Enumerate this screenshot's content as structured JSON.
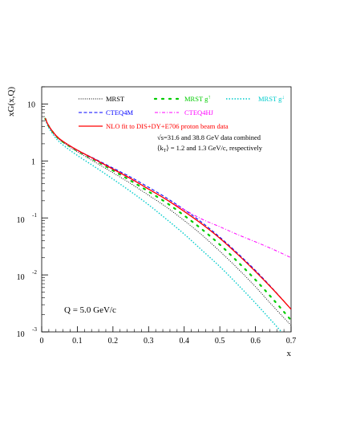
{
  "chart_data": {
    "type": "line",
    "xlabel": "x",
    "ylabel": "xG(x,Q)",
    "xlim": [
      0,
      0.7
    ],
    "ylim": [
      0.001,
      20
    ],
    "yscale": "log",
    "grid": false,
    "legend_position": "top",
    "x_ticks": [
      {
        "value": 0,
        "label": "0"
      },
      {
        "value": 0.1,
        "label": "0.1"
      },
      {
        "value": 0.2,
        "label": "0.2"
      },
      {
        "value": 0.3,
        "label": "0.3"
      },
      {
        "value": 0.4,
        "label": "0.4"
      },
      {
        "value": 0.5,
        "label": "0.5"
      },
      {
        "value": 0.6,
        "label": "0.6"
      },
      {
        "value": 0.7,
        "label": "0.7"
      }
    ],
    "y_ticks": [
      {
        "value": 10,
        "base": "10",
        "exp": ""
      },
      {
        "value": 1,
        "base": "1",
        "exp": ""
      },
      {
        "value": 0.1,
        "base": "10",
        "exp": "-1"
      },
      {
        "value": 0.01,
        "base": "10",
        "exp": "-2"
      },
      {
        "value": 0.001,
        "base": "10",
        "exp": "-3"
      }
    ],
    "annotations": [
      {
        "text": "√s=31.6 and 38.8 GeV data combined"
      },
      {
        "text": "⟨k_T⟩ = 1.2 and 1.3 GeV/c, respectively"
      },
      {
        "text": "Q = 5.0 GeV/c"
      }
    ],
    "series": [
      {
        "name": "MRST",
        "color": "#000000",
        "dash": "1,1.6",
        "width": 0.9,
        "x": [
          0.01,
          0.02,
          0.04,
          0.06,
          0.1,
          0.15,
          0.2,
          0.25,
          0.3,
          0.35,
          0.4,
          0.45,
          0.5,
          0.55,
          0.6,
          0.65,
          0.7
        ],
        "y": [
          5.5,
          4.0,
          2.7,
          2.1,
          1.45,
          0.95,
          0.62,
          0.4,
          0.25,
          0.155,
          0.09,
          0.05,
          0.026,
          0.013,
          0.0062,
          0.0028,
          0.0013
        ]
      },
      {
        "name": "MRST g↑",
        "color": "#00cc00",
        "dash": "2,7",
        "width": 2.2,
        "x": [
          0.01,
          0.02,
          0.04,
          0.06,
          0.1,
          0.15,
          0.2,
          0.25,
          0.3,
          0.35,
          0.4,
          0.45,
          0.5,
          0.55,
          0.6,
          0.65,
          0.7
        ],
        "y": [
          5.5,
          4.05,
          2.75,
          2.15,
          1.5,
          1.02,
          0.68,
          0.45,
          0.29,
          0.185,
          0.11,
          0.063,
          0.034,
          0.017,
          0.0082,
          0.0037,
          0.0016
        ]
      },
      {
        "name": "MRST g↓",
        "color": "#00cccc",
        "dash": "1.5,2",
        "width": 1.4,
        "x": [
          0.01,
          0.02,
          0.04,
          0.06,
          0.1,
          0.15,
          0.2,
          0.25,
          0.3,
          0.35,
          0.4,
          0.45,
          0.5,
          0.55,
          0.6,
          0.65,
          0.7
        ],
        "y": [
          5.3,
          3.8,
          2.5,
          1.9,
          1.25,
          0.78,
          0.48,
          0.29,
          0.17,
          0.095,
          0.052,
          0.027,
          0.014,
          0.0068,
          0.0032,
          0.00145,
          0.00065
        ]
      },
      {
        "name": "CTEQ4M",
        "color": "#0000ff",
        "dash": "4,2.5",
        "width": 1.0,
        "x": [
          0.01,
          0.02,
          0.04,
          0.06,
          0.1,
          0.15,
          0.2,
          0.25,
          0.3,
          0.35,
          0.4,
          0.45,
          0.5,
          0.55,
          0.6,
          0.65,
          0.7
        ],
        "y": [
          5.6,
          4.1,
          2.8,
          2.2,
          1.55,
          1.08,
          0.75,
          0.52,
          0.345,
          0.225,
          0.14,
          0.083,
          0.046,
          0.024,
          0.012,
          0.0056,
          0.0025
        ]
      },
      {
        "name": "CTEQ4HJ",
        "color": "#ff00ff",
        "dash": "4,2,1,2",
        "width": 1.0,
        "x": [
          0.01,
          0.02,
          0.04,
          0.06,
          0.1,
          0.15,
          0.2,
          0.25,
          0.3,
          0.35,
          0.4,
          0.45,
          0.5,
          0.55,
          0.6,
          0.65,
          0.7
        ],
        "y": [
          5.6,
          4.1,
          2.78,
          2.18,
          1.52,
          1.04,
          0.71,
          0.48,
          0.32,
          0.21,
          0.14,
          0.095,
          0.07,
          0.051,
          0.038,
          0.028,
          0.02
        ]
      },
      {
        "name": "NLO fit to DIS+DY+E706 proton beam data",
        "color": "#ff0000",
        "dash": "",
        "width": 1.3,
        "x": [
          0.01,
          0.02,
          0.04,
          0.06,
          0.1,
          0.15,
          0.2,
          0.25,
          0.3,
          0.35,
          0.4,
          0.45,
          0.5,
          0.55,
          0.6,
          0.65,
          0.7
        ],
        "y": [
          5.6,
          4.1,
          2.8,
          2.2,
          1.55,
          1.06,
          0.72,
          0.49,
          0.32,
          0.21,
          0.13,
          0.078,
          0.044,
          0.023,
          0.0115,
          0.0055,
          0.0025
        ]
      }
    ]
  }
}
